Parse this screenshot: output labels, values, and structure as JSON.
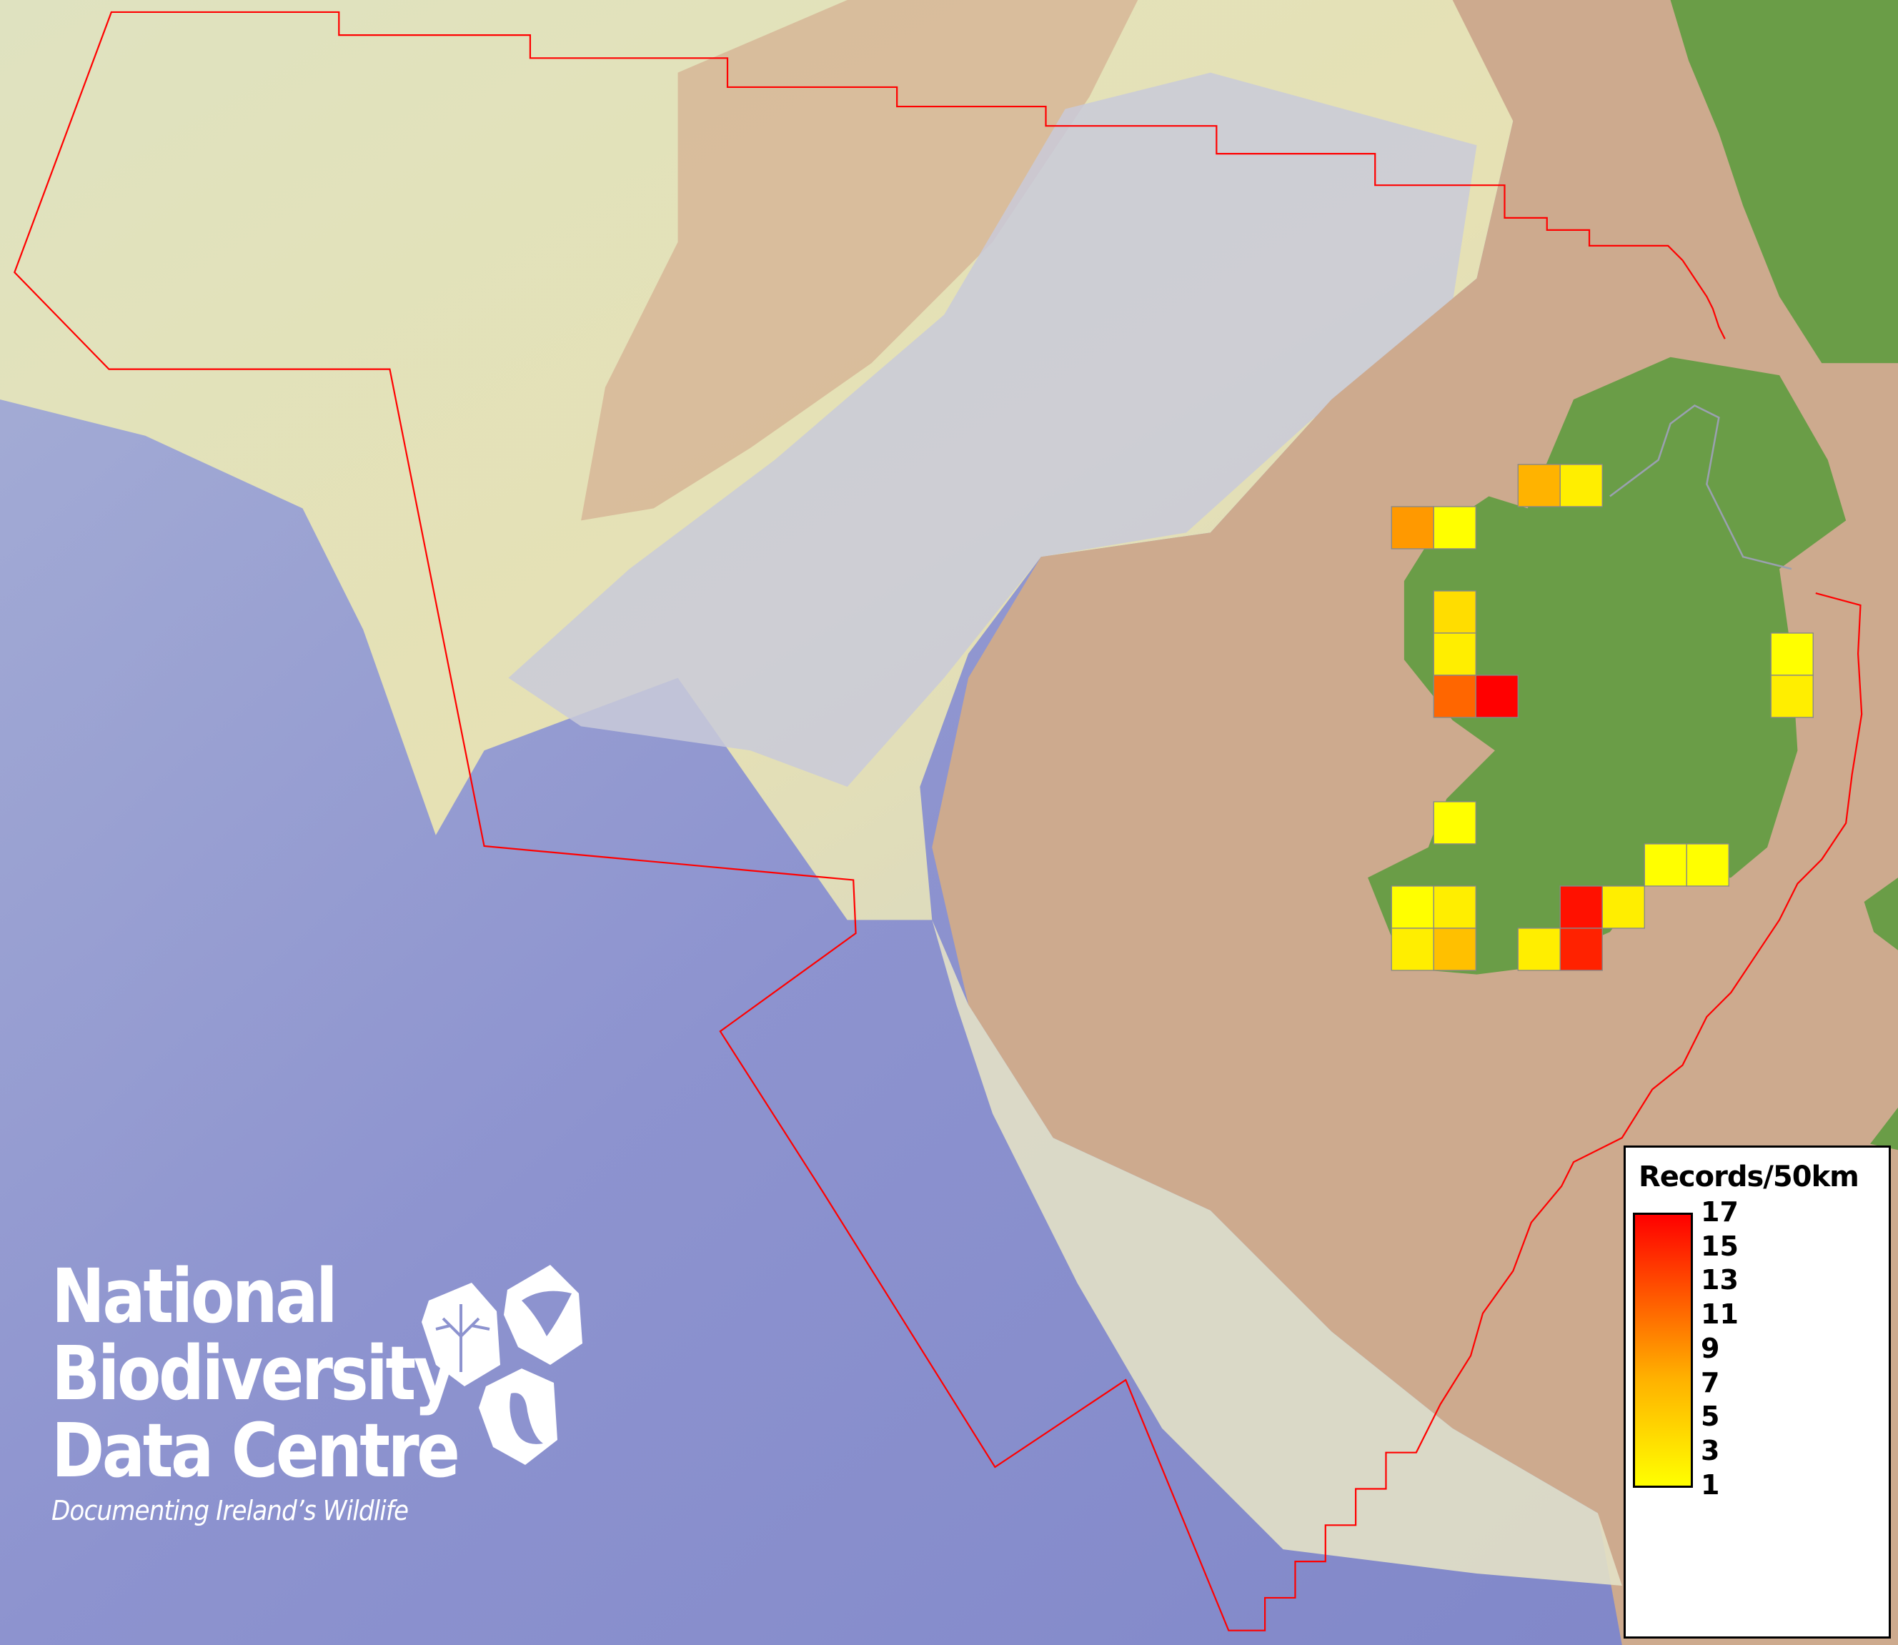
{
  "legend": {
    "title": "Records/50km",
    "ticks": [
      "17",
      "15",
      "13",
      "11",
      "9",
      "7",
      "5",
      "3",
      "1"
    ],
    "color_min": "#FFFF00",
    "color_max": "#FF0000",
    "range": [
      1,
      17
    ]
  },
  "grid_cells": [
    {
      "value": 6,
      "color": "#FFB300"
    },
    {
      "value": 2,
      "color": "#FFEE00"
    },
    {
      "value": 8,
      "color": "#FF9900"
    },
    {
      "value": 1,
      "color": "#FFFF00"
    },
    {
      "value": 3,
      "color": "#FFDD00"
    },
    {
      "value": 2,
      "color": "#FFEE00"
    },
    {
      "value": 11,
      "color": "#FF6600"
    },
    {
      "value": 17,
      "color": "#FF0000"
    },
    {
      "value": 1,
      "color": "#FFFF00"
    },
    {
      "value": 1,
      "color": "#FFFF00"
    },
    {
      "value": 1,
      "color": "#FFFF00"
    },
    {
      "value": 1,
      "color": "#FFFF00"
    },
    {
      "value": 2,
      "color": "#FFEE00"
    },
    {
      "value": 16,
      "color": "#FF1100"
    },
    {
      "value": 2,
      "color": "#FFEE00"
    },
    {
      "value": 2,
      "color": "#FFEE00"
    },
    {
      "value": 5,
      "color": "#FFC000"
    },
    {
      "value": 2,
      "color": "#FFEE00"
    },
    {
      "value": 15,
      "color": "#FF2200"
    },
    {
      "value": 1,
      "color": "#FFFF00"
    },
    {
      "value": 2,
      "color": "#FFEE00"
    }
  ],
  "boundary_color": "#FF0000",
  "logo": {
    "line1": "National",
    "line2": "Biodiversity",
    "line3": "Data Centre",
    "tagline": "Documenting Ireland’s Wildlife"
  }
}
